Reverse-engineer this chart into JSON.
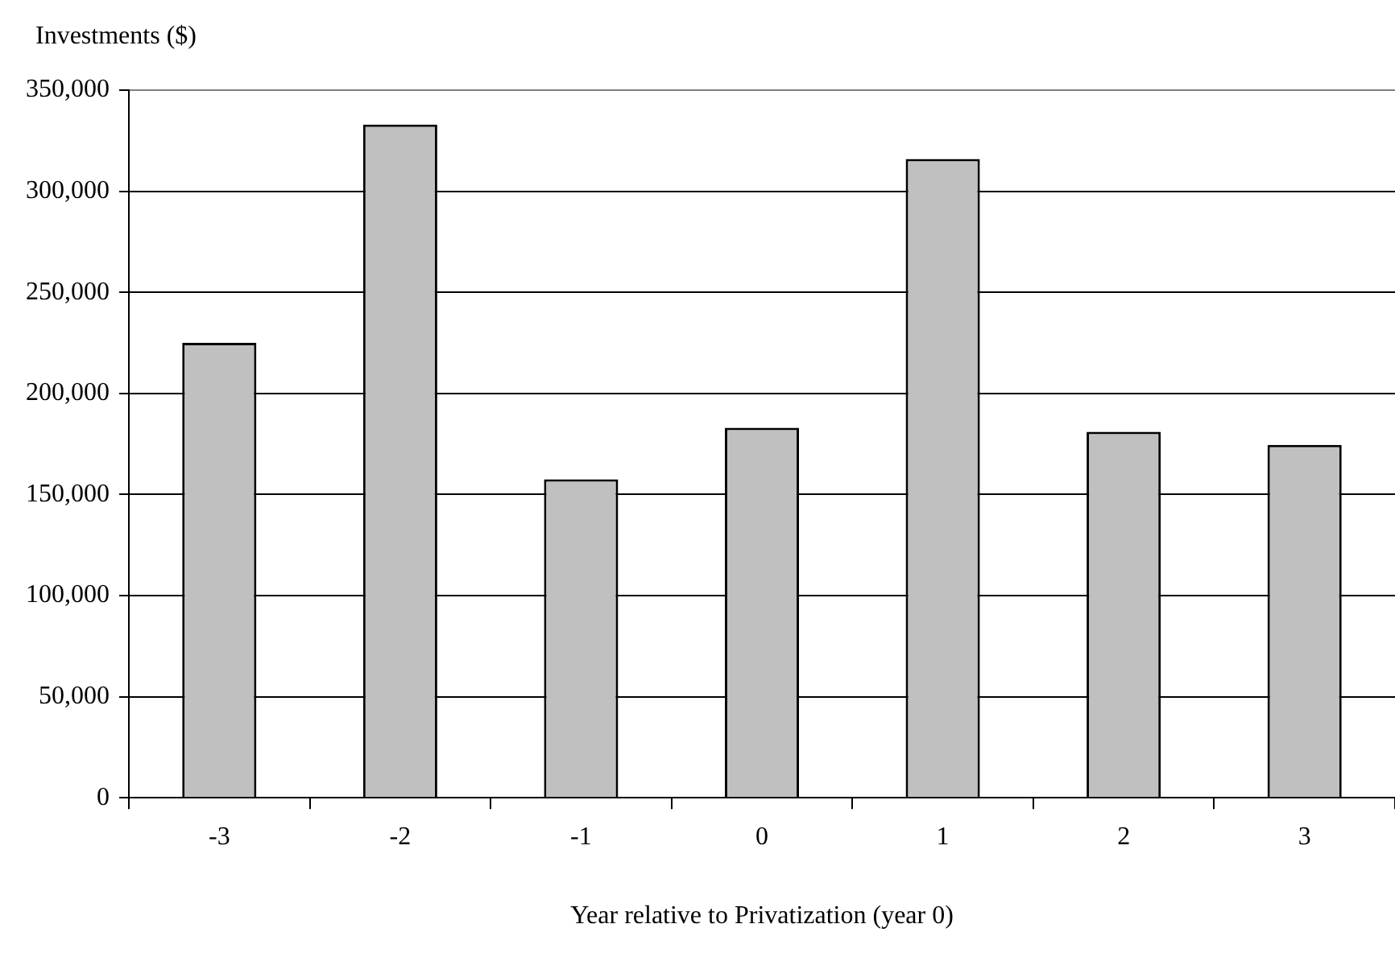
{
  "chart_data": {
    "type": "bar",
    "xlabel": "Year relative to Privatization (year 0)",
    "ylabel": "Investments ($)",
    "categories": [
      "-3",
      "-2",
      "-1",
      "0",
      "1",
      "2",
      "3"
    ],
    "values": [
      225000,
      333000,
      157500,
      183000,
      316000,
      181000,
      174500
    ],
    "color": "#c0c0c0",
    "ylim": [
      0,
      350000
    ],
    "yticks": [
      {
        "value": 0,
        "label": "0"
      },
      {
        "value": 50000,
        "label": "50,000"
      },
      {
        "value": 100000,
        "label": "100,000"
      },
      {
        "value": 150000,
        "label": "150,000"
      },
      {
        "value": 200000,
        "label": "200,000"
      },
      {
        "value": 250000,
        "label": "250,000"
      },
      {
        "value": 300000,
        "label": "300,000"
      },
      {
        "value": 350000,
        "label": "350,000"
      }
    ],
    "grid": "y",
    "legend": false
  }
}
